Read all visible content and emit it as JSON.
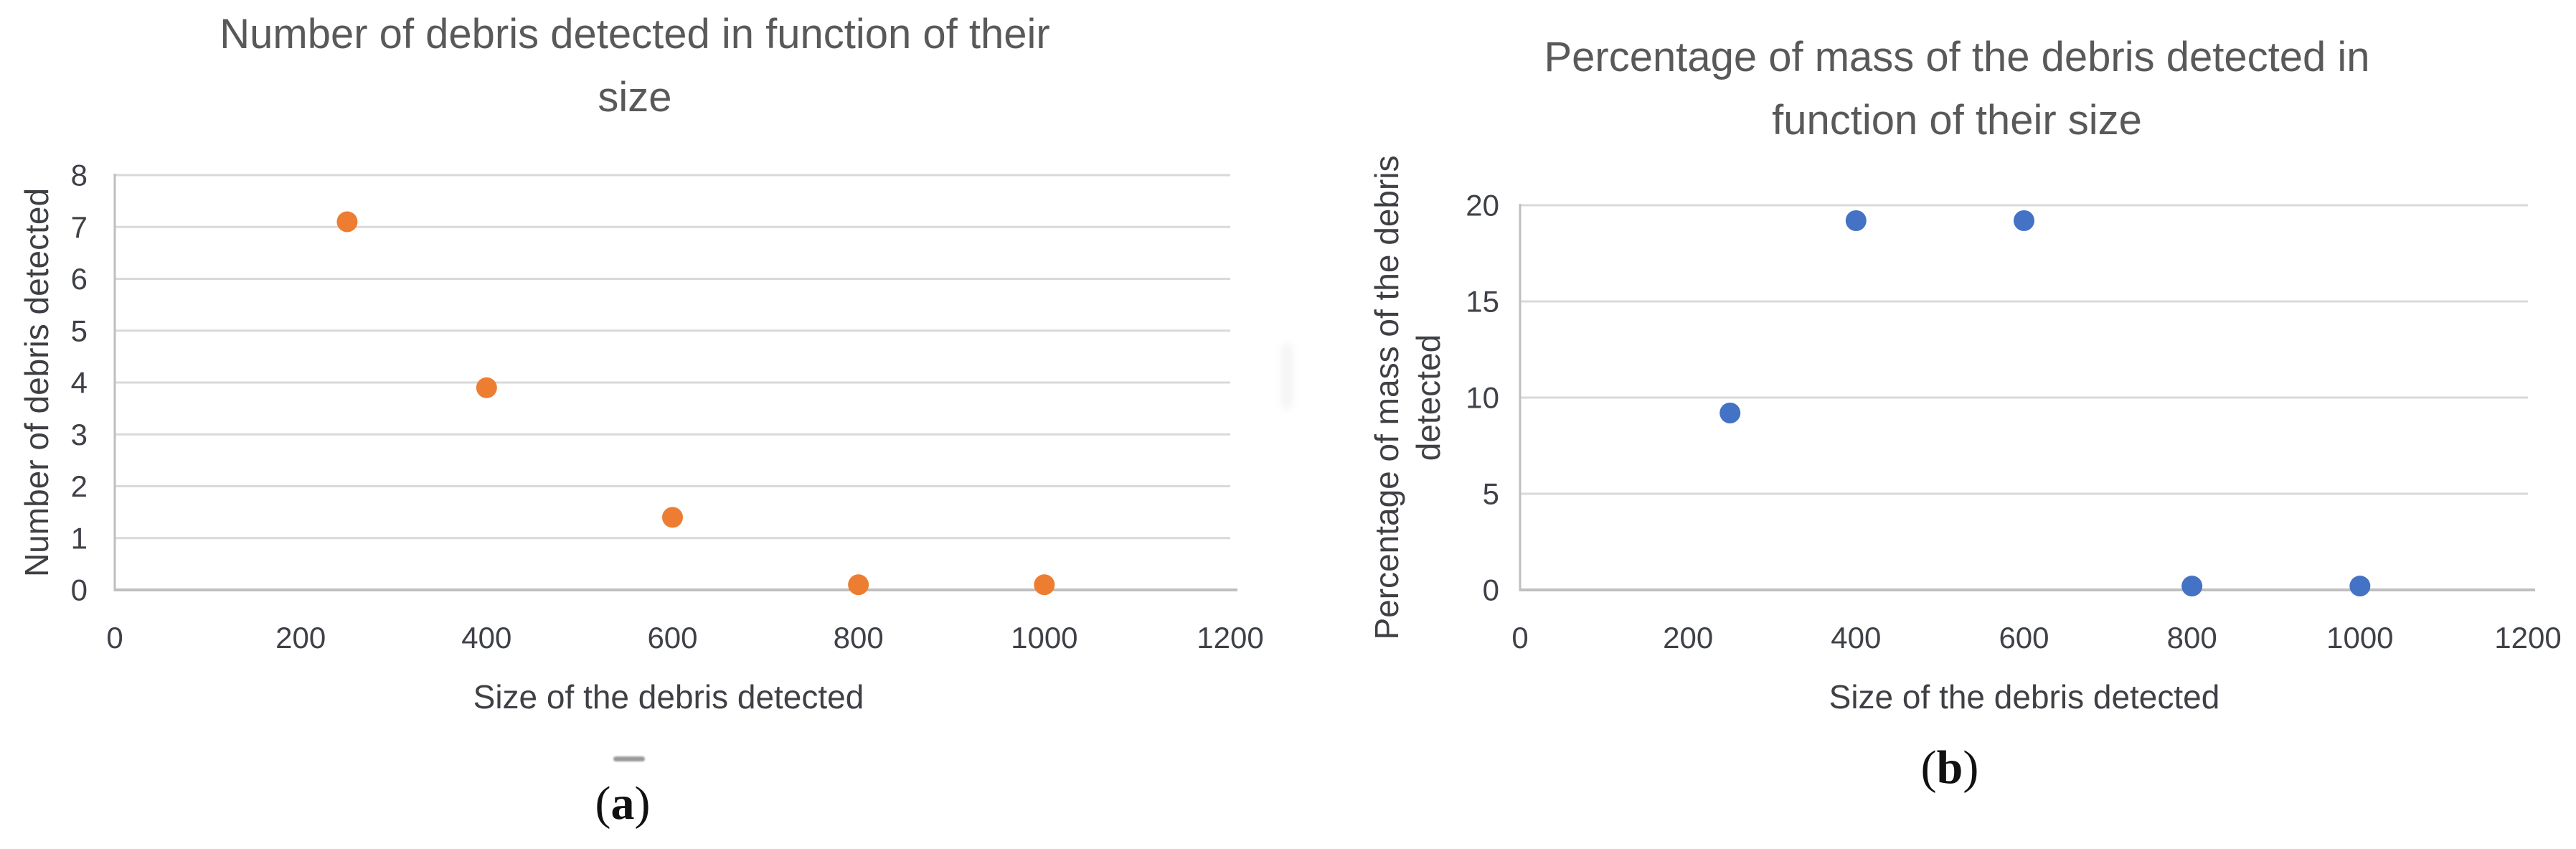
{
  "figure": {
    "captions": [
      {
        "open": "(",
        "label": "a",
        "close": ")"
      },
      {
        "open": "(",
        "label": "b",
        "close": ")"
      }
    ]
  },
  "colors": {
    "grid": "#d9d9d9",
    "axis": "#bfbfbf",
    "tick_text": "#3e4148",
    "title_text": "#595959",
    "marker_orange": "#ED7D31",
    "marker_blue": "#4472C4"
  },
  "chart_data": [
    {
      "id": "a",
      "type": "scatter",
      "title_lines": [
        "Number of debris detected in function of their",
        "size"
      ],
      "xlabel": "Size of the debris detected",
      "ylabel_lines": [
        "Number of debris detected"
      ],
      "xlim": [
        0,
        1200
      ],
      "ylim": [
        0,
        8
      ],
      "xticks": [
        0,
        200,
        400,
        600,
        800,
        1000,
        1200
      ],
      "yticks": [
        0,
        1,
        2,
        3,
        4,
        5,
        6,
        7,
        8
      ],
      "grid": "horizontal",
      "legend": "none",
      "marker_color": "#ED7D31",
      "points": [
        {
          "x": 250,
          "y": 7.1
        },
        {
          "x": 400,
          "y": 3.9
        },
        {
          "x": 600,
          "y": 1.4
        },
        {
          "x": 800,
          "y": 0.1
        },
        {
          "x": 1000,
          "y": 0.1
        }
      ]
    },
    {
      "id": "b",
      "type": "scatter",
      "title_lines": [
        "Percentage of mass of the debris detected in",
        "function of their size"
      ],
      "xlabel": "Size of the debris detected",
      "ylabel_lines": [
        "Percentage of mass of the debris",
        "detected"
      ],
      "xlim": [
        0,
        1200
      ],
      "ylim": [
        0,
        20
      ],
      "xticks": [
        0,
        200,
        400,
        600,
        800,
        1000,
        1200
      ],
      "yticks": [
        0,
        5,
        10,
        15,
        20
      ],
      "grid": "horizontal",
      "legend": "none",
      "marker_color": "#4472C4",
      "points": [
        {
          "x": 250,
          "y": 9.2
        },
        {
          "x": 400,
          "y": 19.2
        },
        {
          "x": 600,
          "y": 19.2
        },
        {
          "x": 800,
          "y": 0.2
        },
        {
          "x": 1000,
          "y": 0.2
        }
      ]
    }
  ]
}
